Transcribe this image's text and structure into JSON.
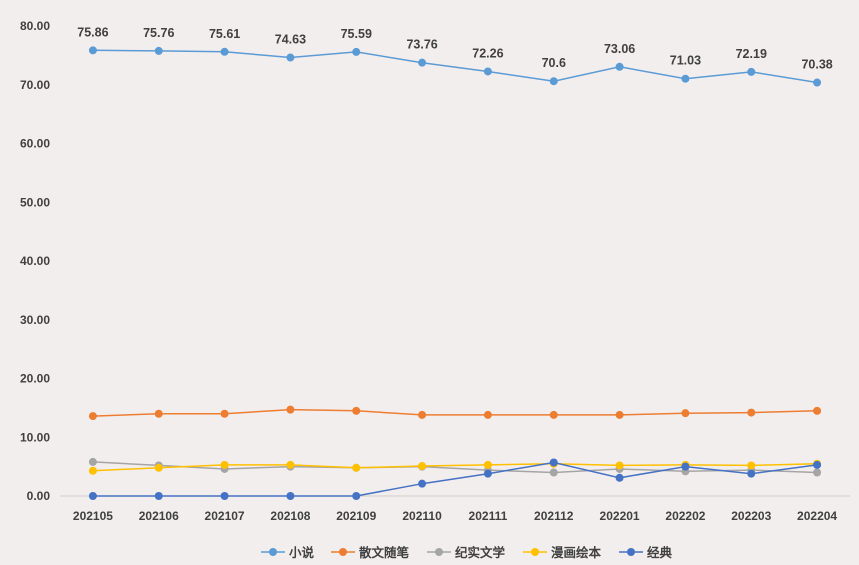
{
  "chart_data": {
    "type": "line",
    "categories": [
      "202105",
      "202106",
      "202107",
      "202108",
      "202109",
      "202110",
      "202111",
      "202112",
      "202201",
      "202202",
      "202203",
      "202204"
    ],
    "ylim": [
      0,
      80
    ],
    "yticks": [
      "0.00",
      "10.00",
      "20.00",
      "30.00",
      "40.00",
      "50.00",
      "60.00",
      "70.00",
      "80.00"
    ],
    "grid": false,
    "legend_position": "bottom",
    "series": [
      {
        "name": "小说",
        "color": "#5b9bd5",
        "labeled": true,
        "values": [
          75.86,
          75.76,
          75.61,
          74.63,
          75.59,
          73.76,
          72.26,
          70.6,
          73.06,
          71.03,
          72.19,
          70.38
        ],
        "data_labels": [
          "75.86",
          "75.76",
          "75.61",
          "74.63",
          "75.59",
          "73.76",
          "72.26",
          "70.6",
          "73.06",
          "71.03",
          "72.19",
          "70.38"
        ]
      },
      {
        "name": "散文随笔",
        "color": "#ed7d31",
        "labeled": false,
        "values": [
          13.6,
          14.0,
          14.0,
          14.7,
          14.5,
          13.8,
          13.8,
          13.8,
          13.8,
          14.1,
          14.2,
          14.5
        ]
      },
      {
        "name": "纪实文学",
        "color": "#a5a5a5",
        "labeled": false,
        "values": [
          5.8,
          5.2,
          4.6,
          5.0,
          4.8,
          5.0,
          4.4,
          4.0,
          4.6,
          4.2,
          4.4,
          4.0
        ]
      },
      {
        "name": "漫画绘本",
        "color": "#ffc000",
        "labeled": false,
        "values": [
          4.3,
          4.8,
          5.3,
          5.3,
          4.8,
          5.1,
          5.3,
          5.5,
          5.2,
          5.3,
          5.2,
          5.5
        ]
      },
      {
        "name": "经典",
        "color": "#4472c4",
        "labeled": false,
        "values": [
          0.0,
          0.0,
          0.0,
          0.0,
          0.0,
          2.1,
          3.8,
          5.7,
          3.1,
          5.0,
          3.8,
          5.3
        ]
      }
    ]
  }
}
